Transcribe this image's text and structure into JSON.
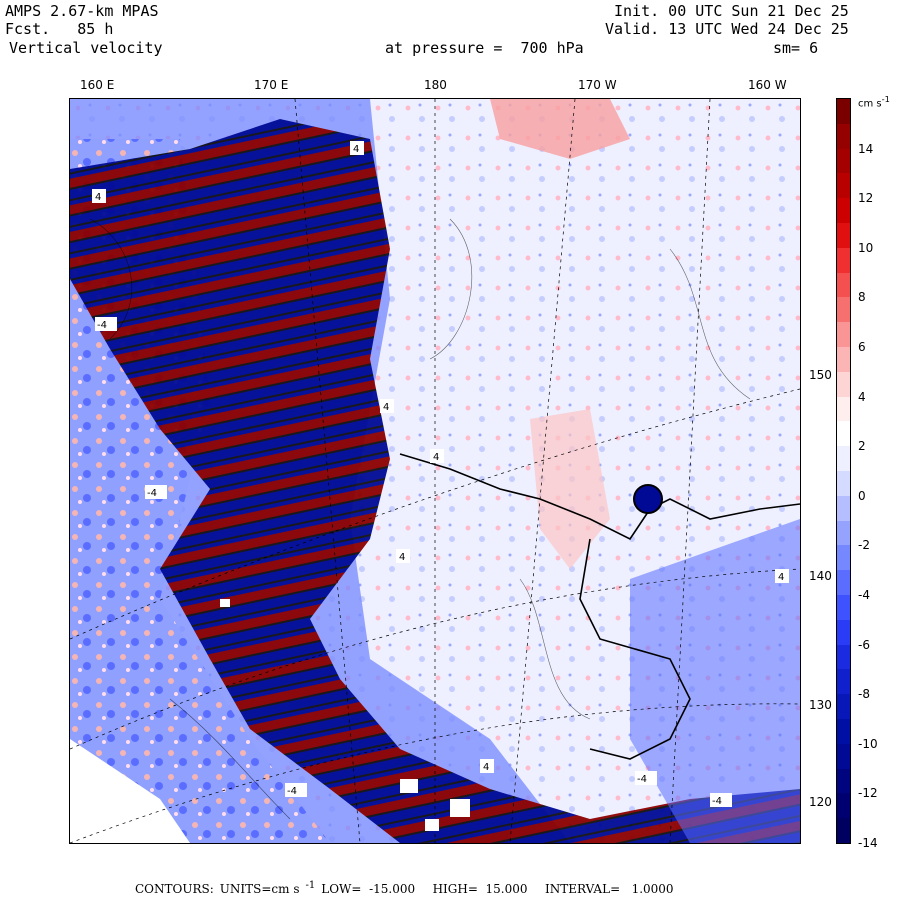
{
  "header": {
    "model": "AMPS 2.67-km MPAS",
    "fcst_label": "Fcst.",
    "fcst_value": "85 h",
    "field": "Vertical velocity",
    "init": "Init. 00 UTC Sun 21 Dec 25",
    "valid": "Valid. 13 UTC Wed 24 Dec 25",
    "level": "at pressure =  700 hPa",
    "smooth": "sm= 6"
  },
  "longitude_labels": [
    "160 E",
    "170 E",
    "180",
    "170 W",
    "160 W"
  ],
  "latitude_labels": [
    "150 W",
    "140 W",
    "130 W",
    "120 W"
  ],
  "colorbar": {
    "unit": "cm s",
    "unit_sup": "-1",
    "labels": [
      "14",
      "12",
      "10",
      "8",
      "6",
      "4",
      "2",
      "0",
      "-2",
      "-4",
      "-6",
      "-8",
      "-10",
      "-12",
      "-14"
    ],
    "colors": [
      "#7a0000",
      "#950000",
      "#a50000",
      "#b80000",
      "#cc0000",
      "#e01010",
      "#f03030",
      "#f45050",
      "#f77070",
      "#fa9595",
      "#fcb5b5",
      "#fdd5d5",
      "#ffeeee",
      "#ffffff",
      "#eef0ff",
      "#d5daff",
      "#b5bfff",
      "#95a3ff",
      "#7588ff",
      "#5a6dff",
      "#3f52ff",
      "#2a3cf5",
      "#1a2be0",
      "#1020cc",
      "#0818b8",
      "#0010a5",
      "#000a95",
      "#00057f",
      "#000070",
      "#000060"
    ]
  },
  "footer": {
    "contours": "CONTOURS:",
    "units": "UNITS=cm s",
    "units_sup": "-1",
    "low": "LOW=  -15.000",
    "high": "HIGH=  15.000",
    "interval": "INTERVAL=   1.0000"
  },
  "map_labels": [
    "4",
    "-4"
  ],
  "colors": {
    "background_field": "#eef0ff",
    "updraft": "#8b0000",
    "downdraft": "#000a95",
    "coastline": "#000000"
  }
}
